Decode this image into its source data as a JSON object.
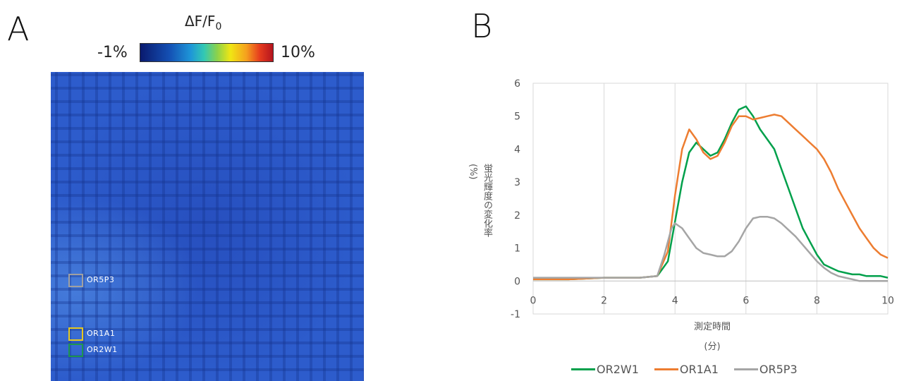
{
  "panel_a": {
    "letter": "A",
    "colorbar": {
      "title_main": "ΔF/F",
      "title_sub": "0",
      "min_label": "-1%",
      "max_label": "10%"
    },
    "rois": [
      {
        "label": "OR5P3",
        "color": "#a0a0a0"
      },
      {
        "label": "OR1A1",
        "color": "#e6c81e"
      },
      {
        "label": "OR2W1",
        "color": "#1e9650"
      }
    ]
  },
  "panel_b": {
    "letter": "B",
    "ylabel_line1": "蛍光輝度の変化率",
    "ylabel_line2": "(%)",
    "xlabel_line1": "測定時間",
    "xlabel_line2": "(分)"
  },
  "chart_data": {
    "type": "line",
    "xlim": [
      0,
      10
    ],
    "ylim": [
      -1,
      6
    ],
    "xticks": [
      0,
      2,
      4,
      6,
      8,
      10
    ],
    "yticks": [
      -1,
      0,
      1,
      2,
      3,
      4,
      5,
      6
    ],
    "grid": "vertical",
    "legend_position": "bottom",
    "series": [
      {
        "name": "OR2W1",
        "color": "#00a04b",
        "x": [
          0,
          1,
          2,
          3,
          3.5,
          3.8,
          4.0,
          4.2,
          4.4,
          4.6,
          4.8,
          5.0,
          5.2,
          5.4,
          5.6,
          5.8,
          6.0,
          6.2,
          6.4,
          6.6,
          6.8,
          7.0,
          7.2,
          7.4,
          7.6,
          7.8,
          8.0,
          8.2,
          8.4,
          8.6,
          8.8,
          9.0,
          9.2,
          9.4,
          9.6,
          9.8,
          10.0
        ],
        "y": [
          0.05,
          0.05,
          0.1,
          0.1,
          0.15,
          0.6,
          1.8,
          3.0,
          3.9,
          4.2,
          4.0,
          3.8,
          3.9,
          4.3,
          4.8,
          5.2,
          5.3,
          5.0,
          4.6,
          4.3,
          4.0,
          3.4,
          2.8,
          2.2,
          1.6,
          1.2,
          0.8,
          0.5,
          0.4,
          0.3,
          0.25,
          0.2,
          0.2,
          0.15,
          0.15,
          0.15,
          0.1
        ]
      },
      {
        "name": "OR1A1",
        "color": "#ed7d31",
        "x": [
          0,
          1,
          2,
          3,
          3.5,
          3.8,
          4.0,
          4.2,
          4.4,
          4.6,
          4.8,
          5.0,
          5.2,
          5.4,
          5.6,
          5.8,
          6.0,
          6.2,
          6.4,
          6.6,
          6.8,
          7.0,
          7.2,
          7.4,
          7.6,
          7.8,
          8.0,
          8.2,
          8.4,
          8.6,
          8.8,
          9.0,
          9.2,
          9.4,
          9.6,
          9.8,
          10.0
        ],
        "y": [
          0.05,
          0.05,
          0.1,
          0.1,
          0.15,
          0.9,
          2.6,
          4.0,
          4.6,
          4.3,
          3.9,
          3.7,
          3.8,
          4.2,
          4.7,
          5.0,
          5.0,
          4.9,
          4.95,
          5.0,
          5.05,
          5.0,
          4.8,
          4.6,
          4.4,
          4.2,
          4.0,
          3.7,
          3.3,
          2.8,
          2.4,
          2.0,
          1.6,
          1.3,
          1.0,
          0.8,
          0.7
        ]
      },
      {
        "name": "OR5P3",
        "color": "#a5a5a5",
        "x": [
          0,
          1,
          2,
          3,
          3.5,
          3.7,
          3.9,
          4.0,
          4.2,
          4.4,
          4.6,
          4.8,
          5.0,
          5.2,
          5.4,
          5.6,
          5.8,
          6.0,
          6.2,
          6.4,
          6.6,
          6.8,
          7.0,
          7.2,
          7.4,
          7.6,
          7.8,
          8.0,
          8.2,
          8.4,
          8.6,
          8.8,
          9.0,
          9.2,
          9.4,
          9.6,
          9.8,
          10.0
        ],
        "y": [
          0.1,
          0.1,
          0.1,
          0.1,
          0.15,
          0.8,
          1.6,
          1.75,
          1.6,
          1.3,
          1.0,
          0.85,
          0.8,
          0.75,
          0.75,
          0.9,
          1.2,
          1.6,
          1.9,
          1.95,
          1.95,
          1.9,
          1.75,
          1.55,
          1.35,
          1.1,
          0.85,
          0.6,
          0.4,
          0.25,
          0.15,
          0.1,
          0.05,
          0.0,
          0.0,
          0.0,
          0.0,
          0.0
        ]
      }
    ]
  }
}
